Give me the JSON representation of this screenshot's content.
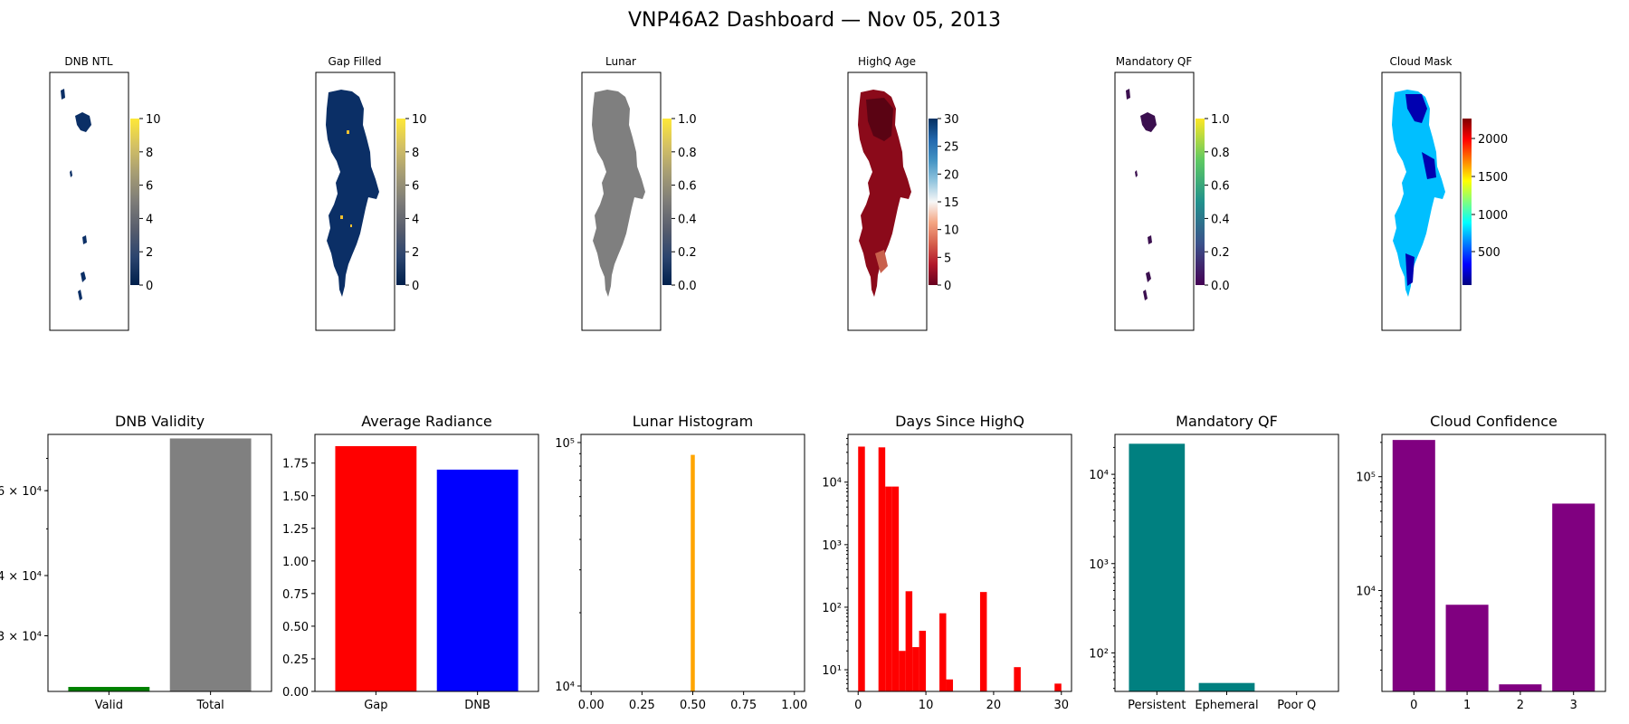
{
  "suptitle": "VNP46A2 Dashboard — Nov 05, 2013",
  "colors": {
    "navy": "#0b2f66",
    "lunar_gray": "#7f7f7f",
    "dark_red": "#8b0a1a",
    "purple_dark": "#3b0f4f",
    "cloud_cyan": "#00bfff",
    "cloud_blue": "#0000b0",
    "green": "#008000",
    "gray": "#808080",
    "red": "#ff0000",
    "blue": "#0000ff",
    "orange": "#ffa500",
    "teal": "#008080",
    "purple": "#800080"
  },
  "maps": [
    {
      "title": "DNB NTL",
      "colormap": "cividis",
      "colorbar_ticks": [
        "0",
        "2",
        "4",
        "6",
        "8",
        "10"
      ],
      "fill": "sparse",
      "fill_color": "navy"
    },
    {
      "title": "Gap Filled",
      "colormap": "cividis",
      "colorbar_ticks": [
        "0",
        "2",
        "4",
        "6",
        "8",
        "10"
      ],
      "fill": "full",
      "fill_color": "navy"
    },
    {
      "title": "Lunar",
      "colormap": "cividis",
      "colorbar_ticks": [
        "0.0",
        "0.2",
        "0.4",
        "0.6",
        "0.8",
        "1.0"
      ],
      "fill": "full",
      "fill_color": "lunar_gray"
    },
    {
      "title": "HighQ Age",
      "colormap": "RdBu",
      "colorbar_ticks": [
        "0",
        "5",
        "10",
        "15",
        "20",
        "25",
        "30"
      ],
      "fill": "full",
      "fill_color": "dark_red"
    },
    {
      "title": "Mandatory QF",
      "colormap": "viridis",
      "colorbar_ticks": [
        "0.0",
        "0.2",
        "0.4",
        "0.6",
        "0.8",
        "1.0"
      ],
      "fill": "sparse",
      "fill_color": "purple_dark"
    },
    {
      "title": "Cloud Mask",
      "colormap": "jet",
      "colorbar_ticks": [
        "500",
        "1000",
        "1500",
        "2000"
      ],
      "fill": "full",
      "fill_color": "cloud_cyan"
    }
  ],
  "chart_data": [
    {
      "type": "bar",
      "title": "DNB Validity",
      "yscale": "log",
      "categories": [
        "Valid",
        "Total"
      ],
      "values": [
        23500,
        77000
      ],
      "ylim": [
        23000,
        78500
      ],
      "yticks": [
        30000,
        40000,
        60000
      ],
      "ytick_labels": [
        "3 × 10⁴",
        "4 × 10⁴",
        "6 × 10⁴"
      ],
      "bar_colors": [
        "green",
        "gray"
      ]
    },
    {
      "type": "bar",
      "title": "Average Radiance",
      "yscale": "linear",
      "categories": [
        "Gap",
        "DNB"
      ],
      "values": [
        1.88,
        1.7
      ],
      "ylim": [
        0,
        1.97
      ],
      "yticks": [
        0,
        0.25,
        0.5,
        0.75,
        1.0,
        1.25,
        1.5,
        1.75
      ],
      "ytick_labels": [
        "0.00",
        "0.25",
        "0.50",
        "0.75",
        "1.00",
        "1.25",
        "1.50",
        "1.75"
      ],
      "bar_colors": [
        "red",
        "blue"
      ]
    },
    {
      "type": "bar",
      "title": "Lunar Histogram",
      "yscale": "log",
      "bin_edges": [
        0.49,
        0.51
      ],
      "values": [
        89000
      ],
      "xlim": [
        -0.05,
        1.05
      ],
      "xticks": [
        0,
        0.25,
        0.5,
        0.75,
        1.0
      ],
      "xtick_labels": [
        "0.00",
        "0.25",
        "0.50",
        "0.75",
        "1.00"
      ],
      "ylim": [
        9500,
        108000
      ],
      "yticks": [
        10000,
        100000
      ],
      "ytick_labels": [
        "10⁴",
        "10⁵"
      ],
      "bar_colors": [
        "orange"
      ]
    },
    {
      "type": "bar",
      "title": "Days Since HighQ",
      "yscale": "log",
      "bin_edges": [
        0,
        1,
        2,
        3,
        4,
        5,
        6,
        7,
        8,
        9,
        10,
        11,
        12,
        13,
        14,
        15,
        16,
        17,
        18,
        19,
        20,
        21,
        22,
        23,
        24,
        25,
        26,
        27,
        28,
        29,
        30
      ],
      "values": [
        37000,
        0,
        0,
        36000,
        8500,
        8500,
        20,
        180,
        23,
        42,
        0,
        0,
        80,
        7,
        0,
        0,
        0,
        0,
        175,
        0,
        0,
        0,
        0,
        11,
        0,
        0,
        0,
        0,
        0,
        6
      ],
      "xlim": [
        -1.5,
        31.5
      ],
      "xticks": [
        0,
        10,
        20,
        30
      ],
      "xtick_labels": [
        "0",
        "10",
        "20",
        "30"
      ],
      "ylim": [
        4.5,
        58000
      ],
      "yticks": [
        10,
        100,
        1000,
        10000
      ],
      "ytick_labels": [
        "10¹",
        "10²",
        "10³",
        "10⁴"
      ],
      "bar_colors": [
        "red"
      ]
    },
    {
      "type": "bar",
      "title": "Mandatory QF",
      "yscale": "log",
      "categories": [
        "Persistent",
        "Ephemeral",
        "Poor Q"
      ],
      "values": [
        22000,
        46,
        0
      ],
      "ylim": [
        37,
        28000
      ],
      "yticks": [
        100,
        1000,
        10000
      ],
      "ytick_labels": [
        "10²",
        "10³",
        "10⁴"
      ],
      "bar_colors": [
        "teal"
      ]
    },
    {
      "type": "bar",
      "title": "Cloud Confidence",
      "yscale": "log",
      "categories": [
        "0",
        "1",
        "2",
        "3"
      ],
      "values": [
        210000,
        7500,
        1500,
        58000
      ],
      "ylim": [
        1300,
        235000
      ],
      "yticks": [
        10000,
        100000
      ],
      "ytick_labels": [
        "10⁴",
        "10⁵"
      ],
      "bar_colors": [
        "purple"
      ]
    }
  ]
}
